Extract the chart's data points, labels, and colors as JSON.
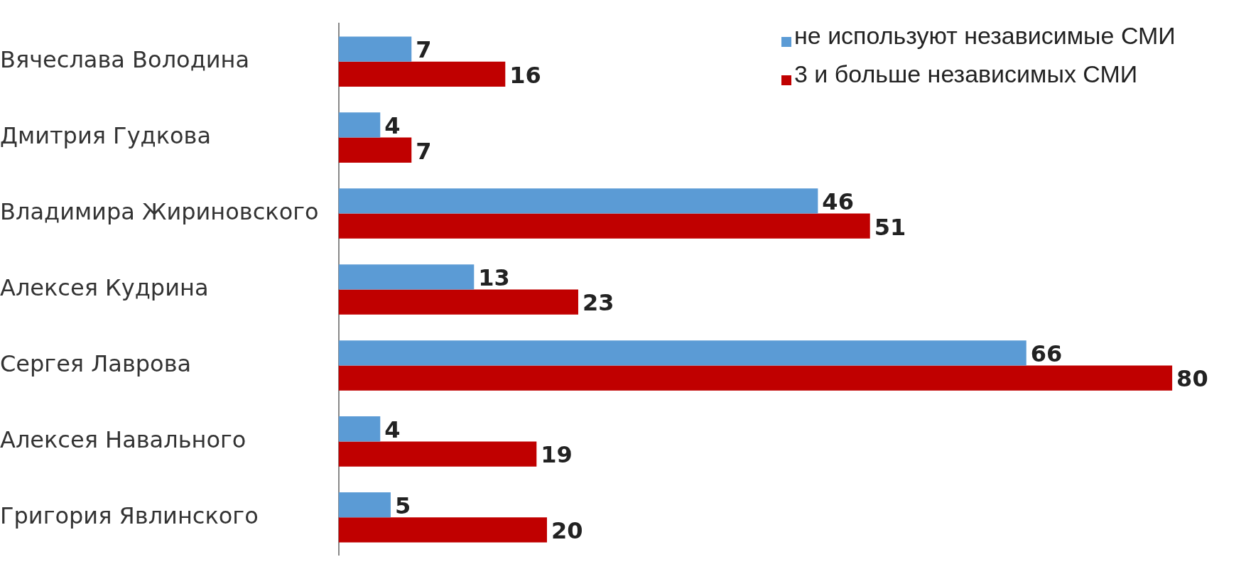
{
  "chart_data": {
    "type": "bar",
    "orientation": "horizontal",
    "data_labels": true,
    "legend": "top right",
    "categories": [
      "Вячеслава Володина",
      "Дмитрия Гудкова",
      "Владимира Жириновского",
      "Алексея Кудрина",
      "Сергея Лаврова",
      "Алексея Навального",
      "Григория Явлинского"
    ],
    "series": [
      {
        "name": "не используют независимые СМИ",
        "color": "#5b9bd5",
        "values": [
          7,
          4,
          46,
          13,
          66,
          4,
          5
        ]
      },
      {
        "name": "3 и больше независимых СМИ",
        "color": "#c00000",
        "values": [
          16,
          7,
          51,
          23,
          80,
          19,
          20
        ]
      }
    ]
  }
}
